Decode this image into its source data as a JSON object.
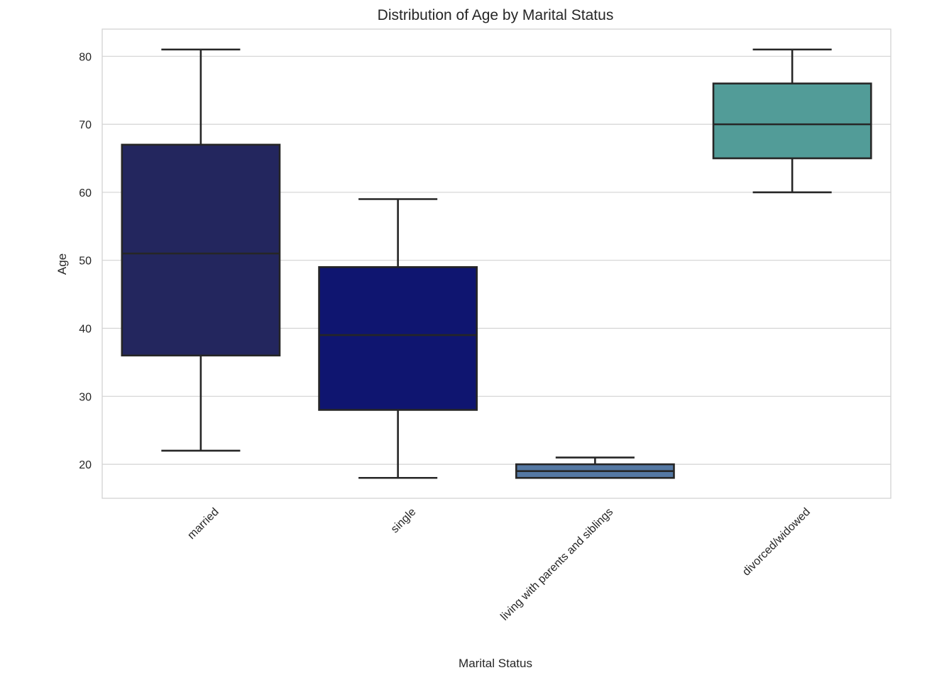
{
  "chart_data": {
    "type": "box",
    "title": "Distribution of Age by Marital Status",
    "xlabel": "Marital Status",
    "ylabel": "Age",
    "ylim": [
      15,
      84
    ],
    "yticks": [
      20,
      30,
      40,
      50,
      60,
      70,
      80
    ],
    "grid": true,
    "categories": [
      "married",
      "single",
      "living with parents and siblings",
      "divorced/widowed"
    ],
    "colors": [
      "#23265e",
      "#0f1570",
      "#5578a3",
      "#529c98"
    ],
    "boxes": [
      {
        "category": "married",
        "whislo": 22,
        "q1": 36,
        "med": 51,
        "q3": 67,
        "whishi": 81
      },
      {
        "category": "single",
        "whislo": 18,
        "q1": 28,
        "med": 39,
        "q3": 49,
        "whishi": 59
      },
      {
        "category": "living with parents and siblings",
        "whislo": 18,
        "q1": 18,
        "med": 19,
        "q3": 20,
        "whishi": 21
      },
      {
        "category": "divorced/widowed",
        "whislo": 60,
        "q1": 65,
        "med": 70,
        "q3": 76,
        "whishi": 81
      }
    ]
  }
}
